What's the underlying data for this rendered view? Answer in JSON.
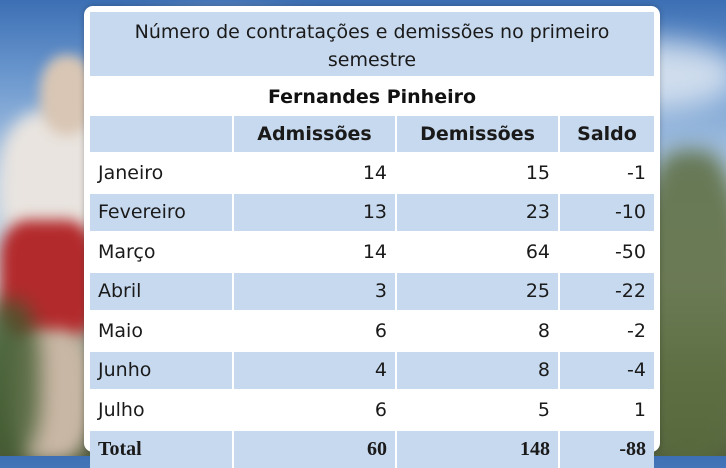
{
  "table": {
    "title": "Número de contratações e demissões no primeiro semestre",
    "subtitle": "Fernandes Pinheiro",
    "columns": [
      "",
      "Admissões",
      "Demissões",
      "Saldo"
    ],
    "rows": [
      [
        "Janeiro",
        "14",
        "15",
        "-1"
      ],
      [
        "Fevereiro",
        "13",
        "23",
        "-10"
      ],
      [
        "Março",
        "14",
        "64",
        "-50"
      ],
      [
        "Abril",
        "3",
        "25",
        "-22"
      ],
      [
        "Maio",
        "6",
        "8",
        "-2"
      ],
      [
        "Junho",
        "4",
        "8",
        "-4"
      ],
      [
        "Julho",
        "6",
        "5",
        "1"
      ]
    ],
    "total": [
      "Total",
      "60",
      "148",
      "-88"
    ]
  },
  "colors": {
    "band": "#c7d9ee",
    "card": "#ffffff"
  }
}
